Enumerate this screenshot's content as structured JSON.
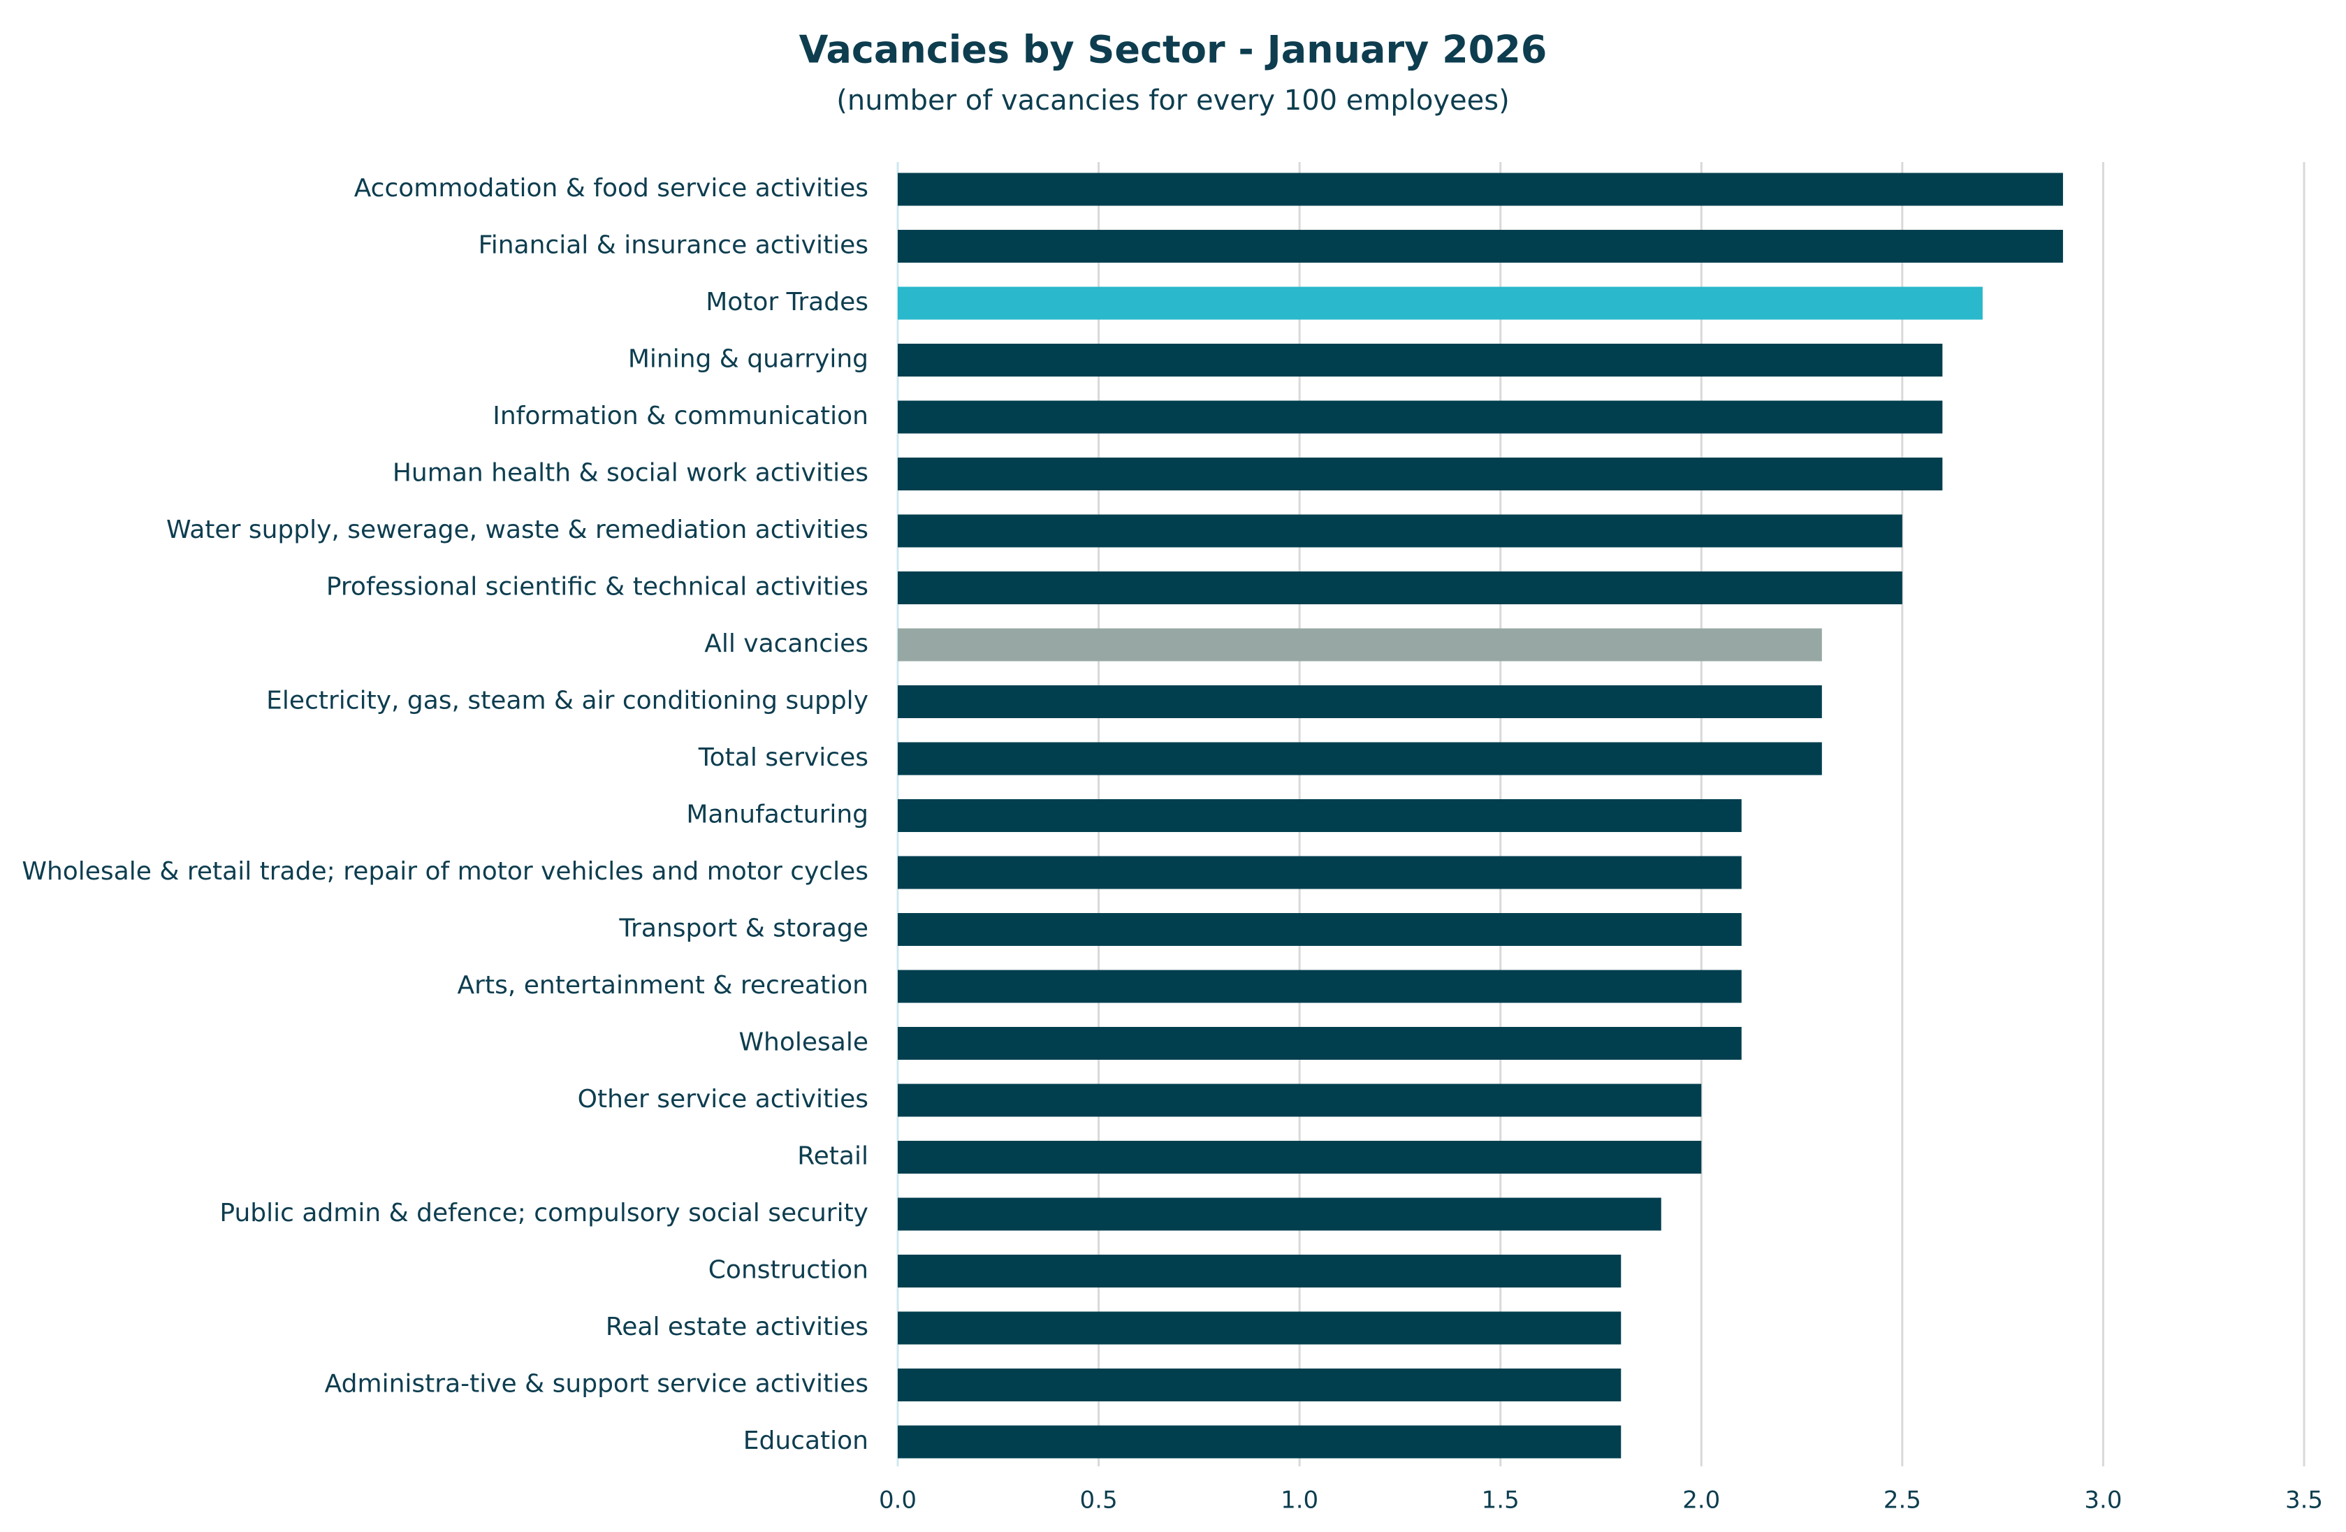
{
  "chart_data": {
    "type": "hbar",
    "title": "Vacancies by Sector  - January 2026",
    "subtitle": "(number of vacancies for every 100 employees)",
    "categories": [
      "Accommodation & food service activities",
      "Financial & insurance activities",
      "Motor Trades",
      "Mining & quarrying",
      "Information & communication",
      "Human health & social work activities",
      "Water supply, sewerage, waste & remediation activities",
      "Professional scientific & technical activities",
      "All vacancies",
      "Electricity, gas, steam & air conditioning supply",
      "Total services",
      "Manufacturing",
      "Wholesale & retail trade; repair of motor vehicles and motor cycles",
      "Transport & storage",
      "Arts, entertainment & recreation",
      "Wholesale",
      "Other service activities",
      "Retail",
      "Public admin & defence; compulsory social security",
      "Construction",
      "Real estate activities",
      "Administra-tive & support service activities",
      "Education"
    ],
    "values": [
      2.9,
      2.9,
      2.7,
      2.6,
      2.6,
      2.6,
      2.5,
      2.5,
      2.3,
      2.3,
      2.3,
      2.1,
      2.1,
      2.1,
      2.1,
      2.1,
      2.0,
      2.0,
      1.9,
      1.8,
      1.8,
      1.8,
      1.8
    ],
    "colors": [
      "#013f4f",
      "#013f4f",
      "#29b8cc",
      "#013f4f",
      "#013f4f",
      "#013f4f",
      "#013f4f",
      "#013f4f",
      "#97a8a4",
      "#013f4f",
      "#013f4f",
      "#013f4f",
      "#013f4f",
      "#013f4f",
      "#013f4f",
      "#013f4f",
      "#013f4f",
      "#013f4f",
      "#013f4f",
      "#013f4f",
      "#013f4f",
      "#013f4f",
      "#013f4f"
    ],
    "xlim": [
      0,
      3.5
    ],
    "xticks": [
      {
        "value": 0,
        "label": "0.0"
      },
      0.5,
      {
        "value": 1,
        "label": "1.0"
      },
      1.5,
      {
        "value": 2,
        "label": "2.0"
      },
      2.5,
      {
        "value": 3,
        "label": "3.0"
      },
      3.5
    ],
    "grid": true
  }
}
